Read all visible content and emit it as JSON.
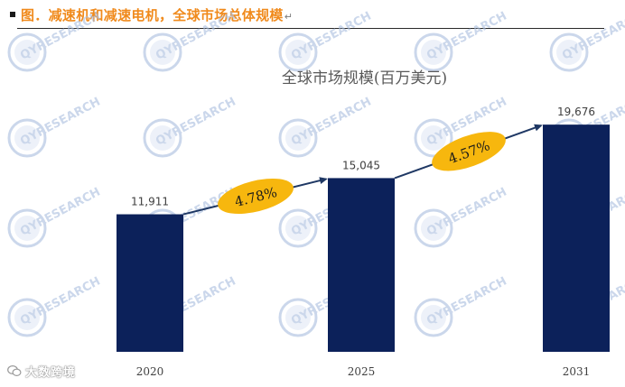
{
  "header": {
    "title": "图．减速机和减速电机，全球市场总体规模",
    "mark": "↵"
  },
  "watermark": {
    "tile_text": "QYRESEARCH",
    "corner_text": "大数跨境"
  },
  "colors": {
    "bar": "#0c215a",
    "accent": "#f08a1c",
    "badge": "#f7b70e",
    "arrow": "#1f3864",
    "watermark": "#a9bedf"
  },
  "chart_data": {
    "type": "bar",
    "title": "全球市场规模(百万美元)",
    "categories": [
      "2020",
      "2025",
      "2031"
    ],
    "values": [
      11911,
      15045,
      19676
    ],
    "value_labels": [
      "11,911",
      "15,045",
      "19,676"
    ],
    "growth_rates": [
      {
        "from": "2020",
        "to": "2025",
        "label": "4.78%"
      },
      {
        "from": "2025",
        "to": "2031",
        "label": "4.57%"
      }
    ],
    "ylim": [
      0,
      25000
    ],
    "grid": false,
    "legend": "none"
  }
}
